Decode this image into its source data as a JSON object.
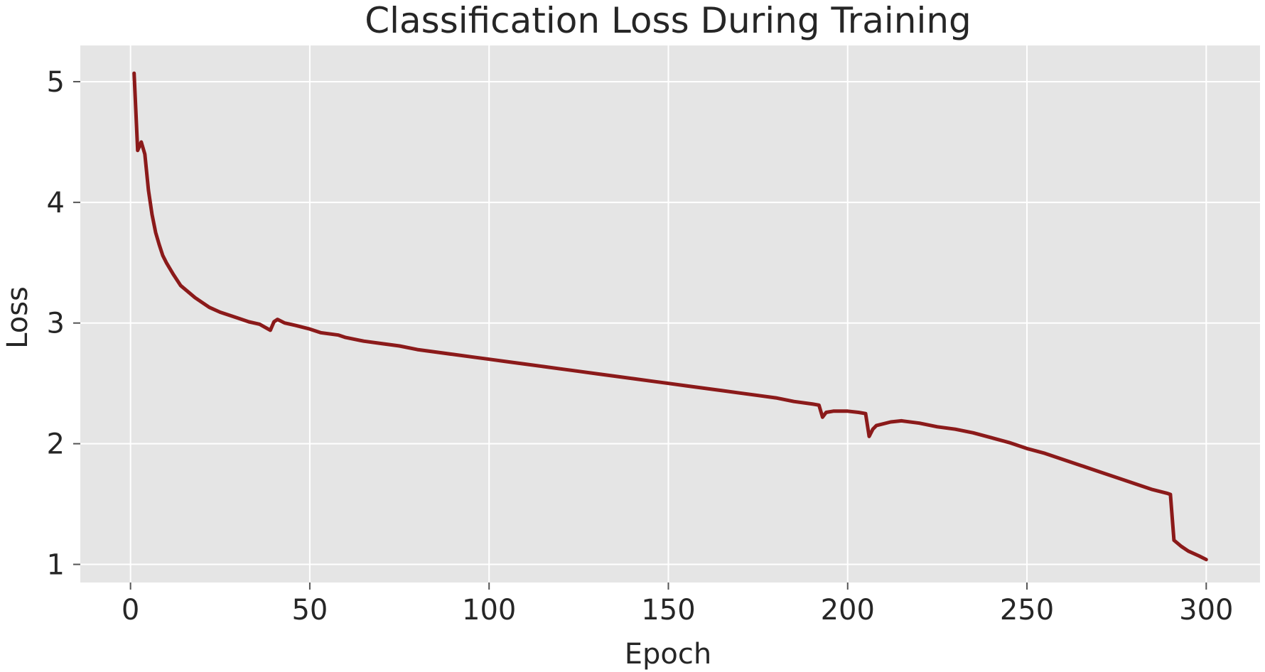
{
  "chart_data": {
    "type": "line",
    "title": "Classification Loss During Training",
    "xlabel": "Epoch",
    "ylabel": "Loss",
    "xlim": [
      -14,
      315
    ],
    "ylim": [
      0.85,
      5.3
    ],
    "xticks": [
      0,
      50,
      100,
      150,
      200,
      250,
      300
    ],
    "xtick_labels": [
      "0",
      "50",
      "100",
      "150",
      "200",
      "250",
      "300"
    ],
    "yticks": [
      1,
      2,
      3,
      4,
      5
    ],
    "ytick_labels": [
      "1",
      "2",
      "3",
      "4",
      "5"
    ],
    "grid": true,
    "legend": "none",
    "colors": {
      "plot_background": "#e5e5e5",
      "grid": "#ffffff",
      "line": "#8b1a1a"
    },
    "series": [
      {
        "color": "#8b1a1a",
        "x": [
          1,
          2,
          3,
          4,
          5,
          6,
          7,
          8,
          9,
          10,
          12,
          14,
          16,
          18,
          20,
          22,
          25,
          28,
          30,
          33,
          36,
          39,
          40,
          41,
          43,
          46,
          50,
          53,
          58,
          60,
          65,
          70,
          75,
          80,
          85,
          90,
          95,
          100,
          105,
          110,
          115,
          120,
          125,
          130,
          135,
          140,
          145,
          150,
          155,
          160,
          165,
          170,
          175,
          180,
          185,
          190,
          192,
          193,
          194,
          196,
          200,
          203,
          205,
          206,
          207,
          208,
          212,
          215,
          220,
          225,
          230,
          235,
          240,
          245,
          250,
          255,
          260,
          265,
          270,
          275,
          280,
          285,
          289,
          290,
          291,
          293,
          295,
          298,
          300
        ],
        "y": [
          5.07,
          4.43,
          4.5,
          4.4,
          4.1,
          3.9,
          3.75,
          3.65,
          3.56,
          3.5,
          3.4,
          3.31,
          3.26,
          3.21,
          3.17,
          3.13,
          3.09,
          3.06,
          3.04,
          3.01,
          2.99,
          2.94,
          3.01,
          3.03,
          3.0,
          2.98,
          2.95,
          2.92,
          2.9,
          2.88,
          2.85,
          2.83,
          2.81,
          2.78,
          2.76,
          2.74,
          2.72,
          2.7,
          2.68,
          2.66,
          2.64,
          2.62,
          2.6,
          2.58,
          2.56,
          2.54,
          2.52,
          2.5,
          2.48,
          2.46,
          2.44,
          2.42,
          2.4,
          2.38,
          2.35,
          2.33,
          2.32,
          2.22,
          2.26,
          2.27,
          2.27,
          2.26,
          2.25,
          2.06,
          2.12,
          2.15,
          2.18,
          2.19,
          2.17,
          2.14,
          2.12,
          2.09,
          2.05,
          2.01,
          1.96,
          1.92,
          1.87,
          1.82,
          1.77,
          1.72,
          1.67,
          1.62,
          1.59,
          1.58,
          1.2,
          1.15,
          1.11,
          1.07,
          1.04
        ]
      }
    ]
  }
}
